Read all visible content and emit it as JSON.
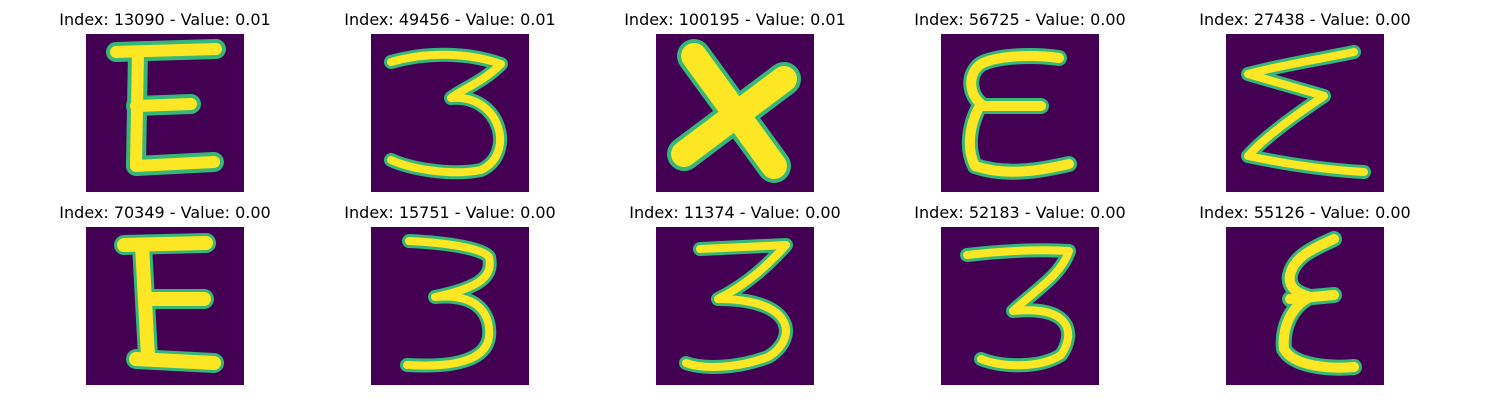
{
  "figure": {
    "panels": [
      {
        "title": "Index: 13090 - Value: 0.01",
        "glyph": "E"
      },
      {
        "title": "Index: 49456 - Value: 0.01",
        "glyph": "3"
      },
      {
        "title": "Index: 100195 - Value: 0.01",
        "glyph": "X"
      },
      {
        "title": "Index: 56725 - Value: 0.00",
        "glyph": "E"
      },
      {
        "title": "Index: 27438 - Value: 0.00",
        "glyph": "Σ"
      },
      {
        "title": "Index: 70349 - Value: 0.00",
        "glyph": "Ε"
      },
      {
        "title": "Index: 15751 - Value: 0.00",
        "glyph": "3"
      },
      {
        "title": "Index: 11374 - Value: 0.00",
        "glyph": "3"
      },
      {
        "title": "Index: 52183 - Value: 0.00",
        "glyph": "3"
      },
      {
        "title": "Index: 55126 - Value: 0.00",
        "glyph": "Ɛ"
      }
    ],
    "colors": {
      "background": "#440154",
      "ink": "#fde725",
      "edge": "#35b779"
    }
  }
}
